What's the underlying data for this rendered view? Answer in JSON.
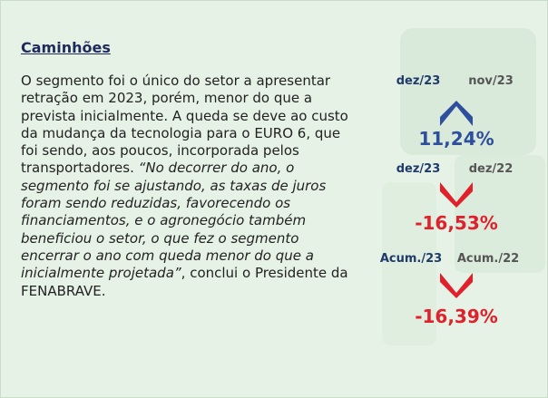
{
  "title": "Caminhões",
  "paragraph": {
    "intro": "O segmento foi o único do setor a apresentar retração em 2023, porém, menor do que a prevista inicialmente. A queda se deve ao custo da mudança da tecnologia para o EURO 6, que foi sendo, aos poucos, incorporada pelos transportadores. ",
    "quote": "“No decorrer do ano, o segmento foi se ajustando, as taxas de juros foram sendo reduzidas, favorecendo os financiamentos, e o agronegócio também beneficiou o setor, o que fez o segmento encerrar o ano com queda menor do que a inicialmente projetada”",
    "closing": ", conclui o Presidente da FENABRAVE."
  },
  "comparisons": [
    {
      "current": "dez/23",
      "previous": "nov/23",
      "change": "11,24%"
    },
    {
      "current": "dez/23",
      "previous": "dez/22",
      "change": "-16,53%"
    },
    {
      "current": "Acum./23",
      "previous": "Acum./22",
      "change": "-16,39%"
    }
  ]
}
